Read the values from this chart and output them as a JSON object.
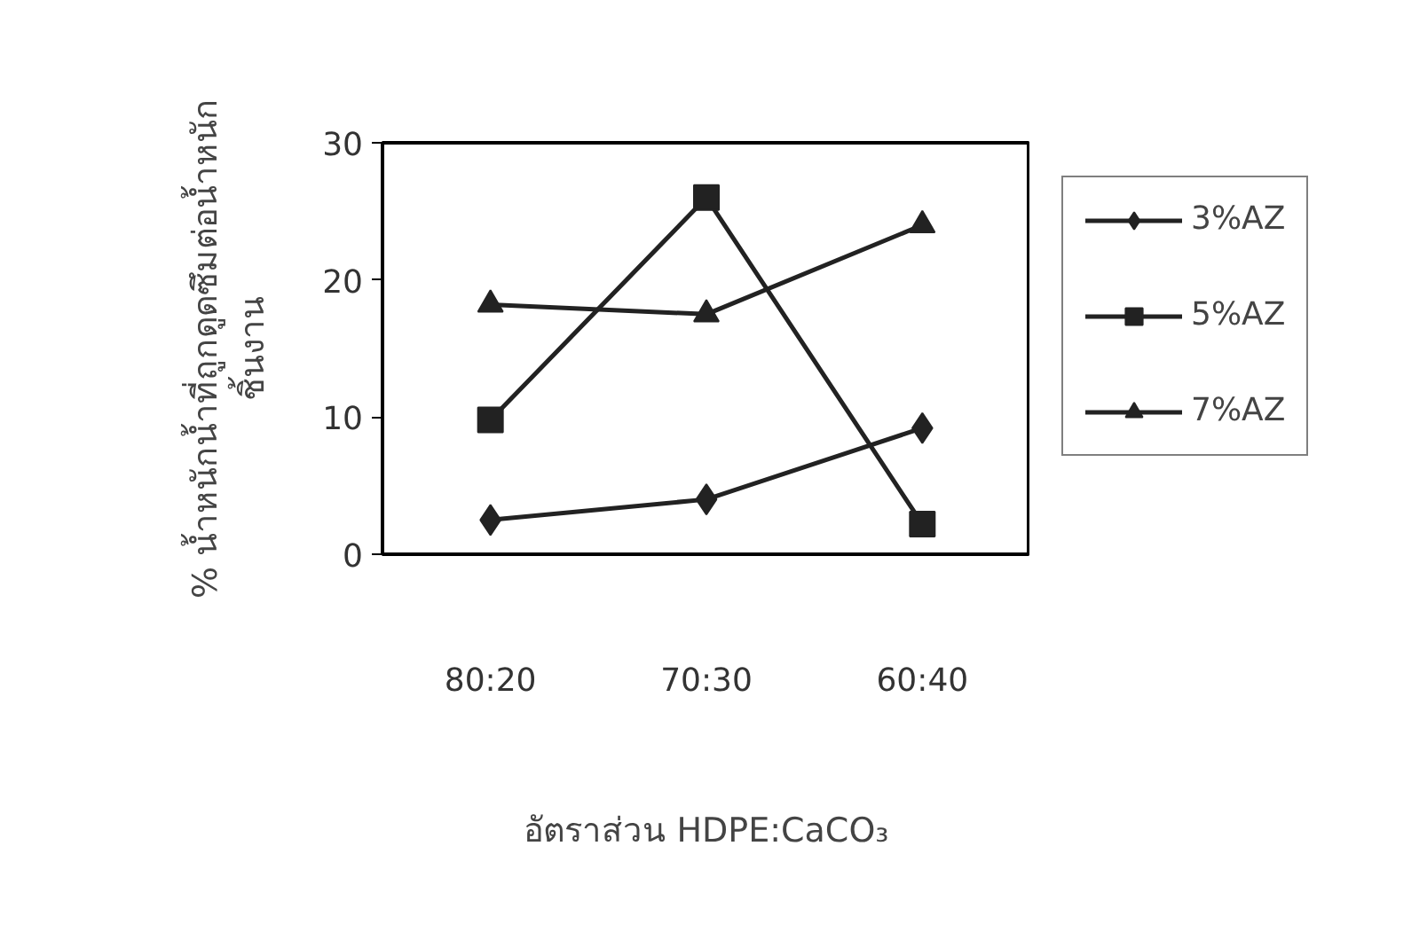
{
  "chart_data": {
    "type": "line",
    "categories": [
      "80:20",
      "70:30",
      "60:40"
    ],
    "xlabel": "อัตราส่วน HDPE:CaCO₃",
    "ylabel": "% น้ำหนักน้ำที่ถูกดูดซึมต่อน้ำหนัก\nชิ้นงาน",
    "ylim": [
      0,
      30
    ],
    "yticks": [
      0,
      10,
      20,
      30
    ],
    "legend": "right",
    "series": [
      {
        "name": "3%AZ",
        "color": "#222222",
        "marker": "diamond",
        "values": [
          2.5,
          4.0,
          9.2
        ]
      },
      {
        "name": "5%AZ",
        "color": "#222222",
        "marker": "square",
        "values": [
          9.8,
          26.0,
          2.2
        ]
      },
      {
        "name": "7%AZ",
        "color": "#222222",
        "marker": "triangle",
        "values": [
          18.2,
          17.5,
          24.0
        ]
      }
    ]
  }
}
